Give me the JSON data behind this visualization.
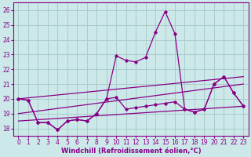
{
  "xlabel": "Windchill (Refroidissement éolien,°C)",
  "background_color": "#cce8e8",
  "grid_color": "#aacccc",
  "line_color": "#880088",
  "xlim": [
    -0.5,
    23.5
  ],
  "ylim": [
    17.5,
    26.5
  ],
  "yticks": [
    18,
    19,
    20,
    21,
    22,
    23,
    24,
    25,
    26
  ],
  "xticks": [
    0,
    1,
    2,
    3,
    4,
    5,
    6,
    7,
    8,
    9,
    10,
    11,
    12,
    13,
    14,
    15,
    16,
    17,
    18,
    19,
    20,
    21,
    22,
    23
  ],
  "hours": [
    0,
    1,
    2,
    3,
    4,
    5,
    6,
    7,
    8,
    9,
    10,
    11,
    12,
    13,
    14,
    15,
    16,
    17,
    18,
    19,
    20,
    21,
    22,
    23
  ],
  "lineA": [
    20.0,
    19.9,
    18.4,
    18.4,
    17.9,
    18.5,
    18.6,
    18.5,
    19.0,
    20.0,
    22.9,
    22.6,
    22.5,
    22.8,
    24.5,
    25.9,
    24.4,
    19.3,
    19.1,
    19.3,
    21.0,
    21.5,
    20.4,
    19.5
  ],
  "lineB": [
    20.0,
    19.9,
    18.4,
    18.4,
    17.9,
    18.5,
    18.6,
    18.5,
    19.0,
    20.0,
    20.1,
    19.3,
    19.4,
    19.5,
    19.6,
    19.7,
    19.8,
    19.3,
    19.1,
    19.3,
    21.0,
    21.5,
    20.4,
    19.5
  ],
  "lineTrend1_x": [
    0,
    23
  ],
  "lineTrend1_y": [
    20.0,
    21.5
  ],
  "lineTrend2_x": [
    0,
    23
  ],
  "lineTrend2_y": [
    19.0,
    21.0
  ],
  "lineTrend3_x": [
    0,
    23
  ],
  "lineTrend3_y": [
    18.5,
    19.5
  ]
}
